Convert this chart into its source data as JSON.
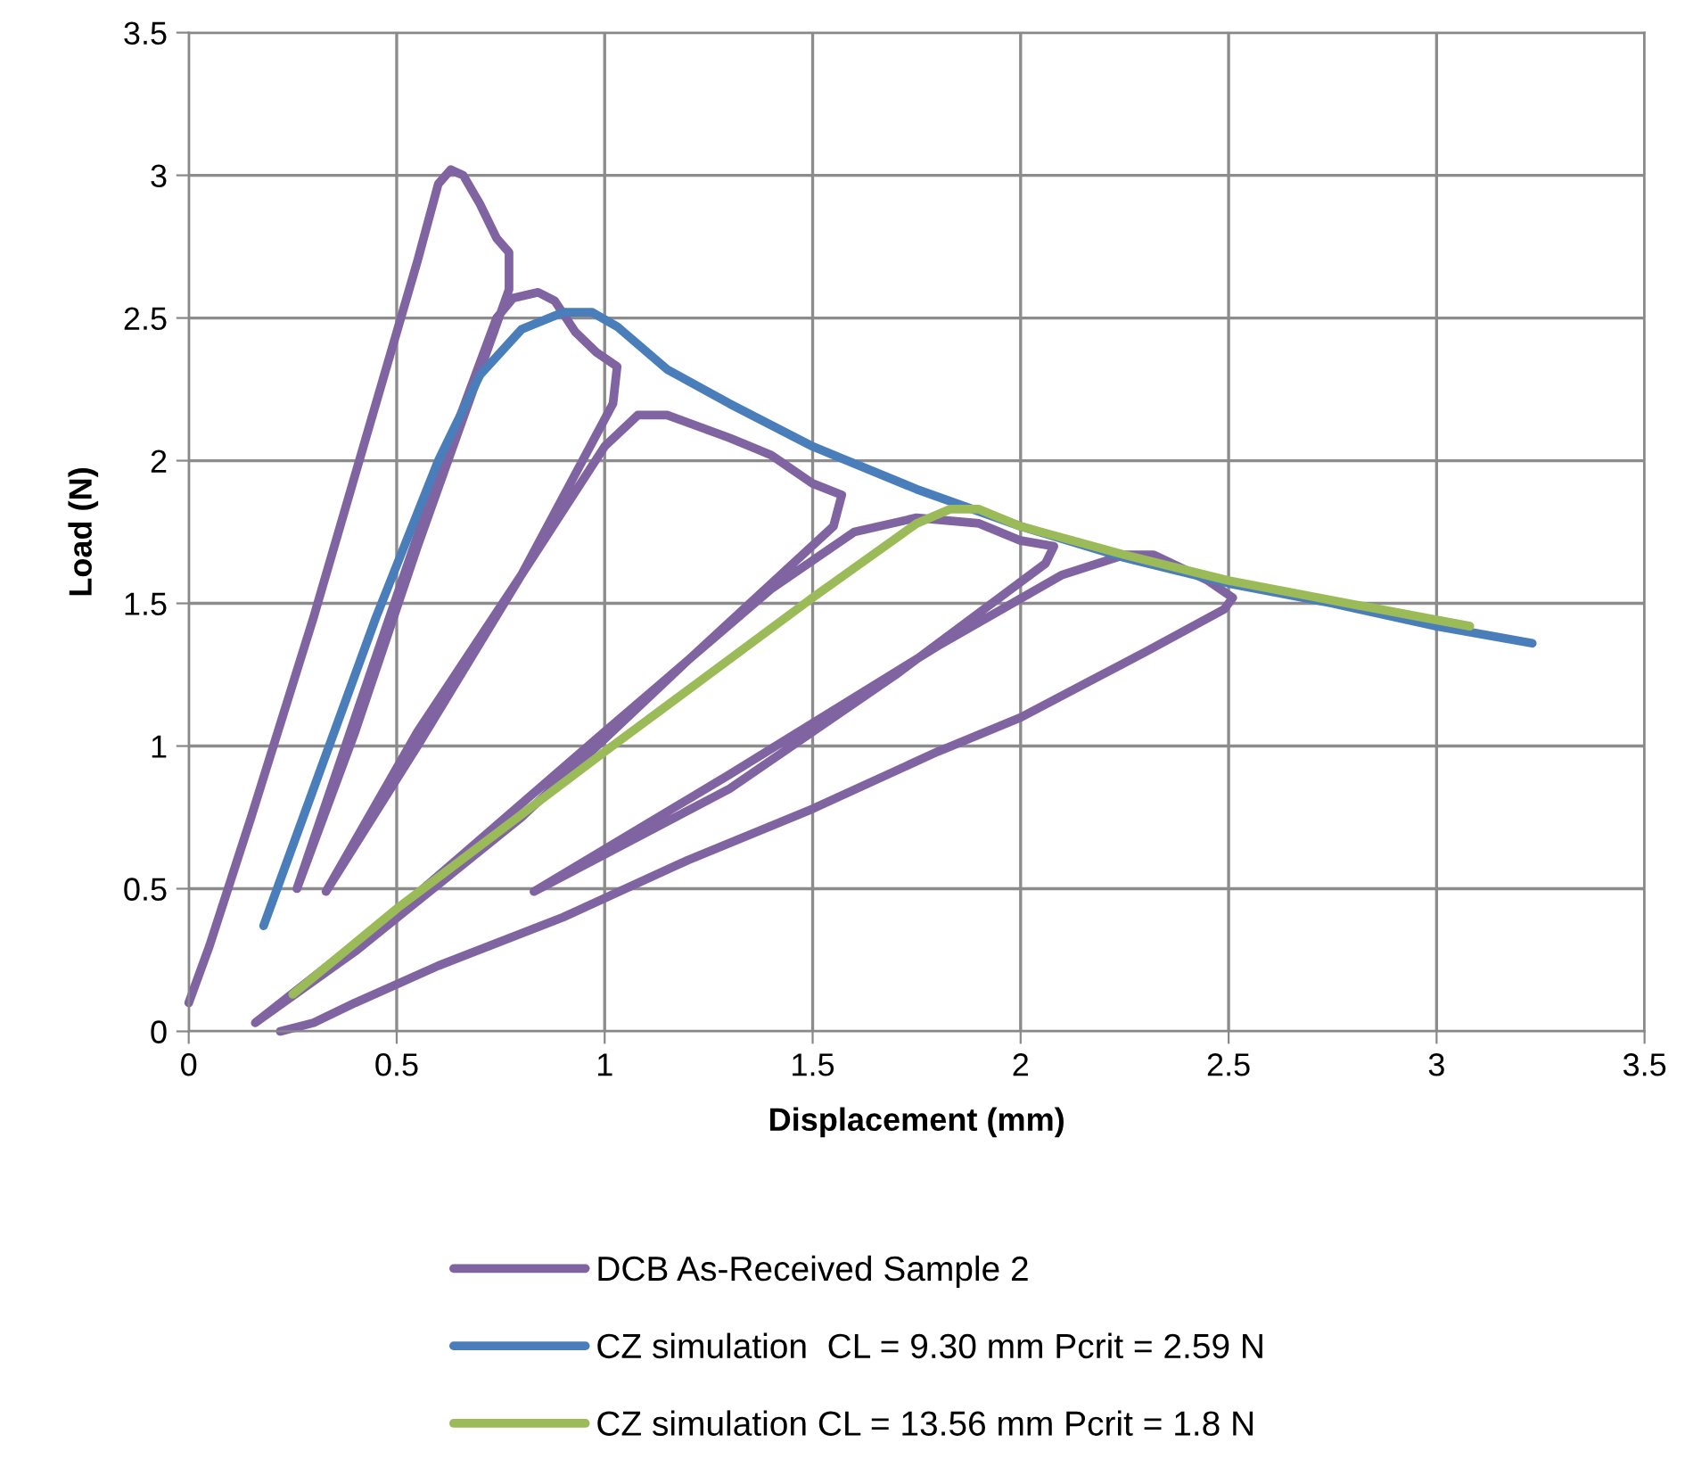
{
  "chart_data": {
    "type": "line",
    "xlabel": "Displacement (mm)",
    "ylabel": "Load (N)",
    "xlim": [
      0,
      3.5
    ],
    "xticks": [
      0,
      0.5,
      1,
      1.5,
      2,
      2.5,
      3,
      3.5
    ],
    "ylim": [
      0,
      3.5
    ],
    "yticks": [
      0,
      0.5,
      1,
      1.5,
      2,
      2.5,
      3,
      3.5
    ],
    "grid": true,
    "legend": "bottom",
    "marker": "none",
    "line_style": "solid",
    "series": [
      {
        "name": "DCB As-Received Sample 2",
        "color": "#8064a2",
        "x": [
          0.0,
          0.05,
          0.15,
          0.3,
          0.45,
          0.55,
          0.6,
          0.63,
          0.66,
          0.7,
          0.74,
          0.77,
          0.77,
          0.55,
          0.4,
          0.26,
          0.4,
          0.6,
          0.74,
          0.78,
          0.84,
          0.88,
          0.93,
          0.98,
          1.03,
          1.02,
          0.8,
          0.55,
          0.33,
          0.55,
          0.8,
          1.0,
          1.08,
          1.15,
          1.3,
          1.4,
          1.5,
          1.57,
          1.55,
          1.2,
          0.8,
          0.4,
          0.16,
          0.5,
          1.0,
          1.4,
          1.6,
          1.75,
          1.9,
          2.0,
          2.08,
          2.06,
          1.7,
          1.3,
          0.83,
          1.3,
          1.8,
          2.1,
          2.25,
          2.32,
          2.45,
          2.51,
          2.49,
          2.3,
          2.0,
          1.8,
          1.5,
          1.2,
          0.9,
          0.6,
          0.4,
          0.3,
          0.22
        ],
        "values": [
          0.1,
          0.3,
          0.75,
          1.45,
          2.2,
          2.7,
          2.97,
          3.02,
          3.0,
          2.9,
          2.78,
          2.73,
          2.6,
          1.7,
          1.05,
          0.5,
          1.1,
          1.95,
          2.5,
          2.57,
          2.59,
          2.56,
          2.45,
          2.38,
          2.33,
          2.2,
          1.6,
          1.0,
          0.49,
          1.05,
          1.6,
          2.05,
          2.16,
          2.16,
          2.08,
          2.02,
          1.92,
          1.88,
          1.77,
          1.3,
          0.75,
          0.28,
          0.03,
          0.42,
          1.05,
          1.55,
          1.75,
          1.8,
          1.78,
          1.72,
          1.7,
          1.64,
          1.25,
          0.85,
          0.49,
          0.9,
          1.35,
          1.6,
          1.67,
          1.67,
          1.58,
          1.52,
          1.48,
          1.33,
          1.1,
          0.98,
          0.78,
          0.6,
          0.4,
          0.23,
          0.1,
          0.03,
          0.0
        ]
      },
      {
        "name": "CZ simulation  CL = 9.30 mm Pcrit = 2.59 N",
        "color": "#4a7ebb",
        "x": [
          0.18,
          0.3,
          0.45,
          0.6,
          0.7,
          0.8,
          0.9,
          0.97,
          1.03,
          1.15,
          1.3,
          1.5,
          1.75,
          2.0,
          2.25,
          2.5,
          2.75,
          3.0,
          3.23
        ],
        "values": [
          0.37,
          0.85,
          1.45,
          2.0,
          2.3,
          2.46,
          2.52,
          2.52,
          2.47,
          2.32,
          2.2,
          2.05,
          1.9,
          1.77,
          1.66,
          1.57,
          1.5,
          1.42,
          1.36
        ]
      },
      {
        "name": "CZ simulation CL = 13.56 mm Pcrit = 1.8 N",
        "color": "#9bbb59",
        "x": [
          0.25,
          0.5,
          1.0,
          1.5,
          1.75,
          1.83,
          1.9,
          2.0,
          2.25,
          2.5,
          2.75,
          3.08
        ],
        "values": [
          0.13,
          0.43,
          0.98,
          1.52,
          1.78,
          1.83,
          1.83,
          1.77,
          1.67,
          1.58,
          1.51,
          1.42
        ]
      }
    ]
  }
}
